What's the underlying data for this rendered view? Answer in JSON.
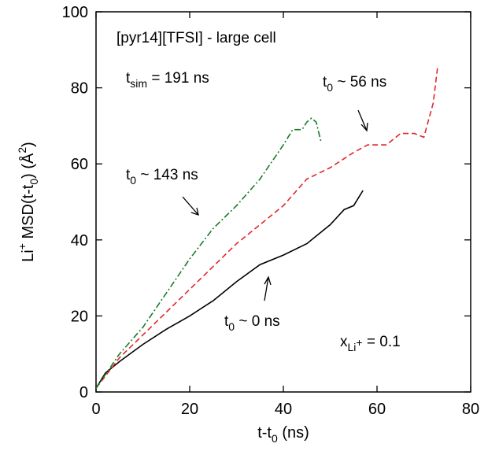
{
  "chart_data": {
    "type": "line",
    "x_label": [
      {
        "text": "t-t"
      },
      {
        "sub": "0"
      },
      {
        "text": " (ns)"
      }
    ],
    "y_label": [
      {
        "text": "Li"
      },
      {
        "sup": "+"
      },
      {
        "text": " MSD(t-t"
      },
      {
        "sub": "0"
      },
      {
        "text": ") (Å"
      },
      {
        "sup": "2"
      },
      {
        "text": ")"
      }
    ],
    "xlim": [
      0,
      80
    ],
    "xticks": [
      0,
      20,
      40,
      60,
      80
    ],
    "ylim": [
      0,
      100
    ],
    "yticks": [
      0,
      20,
      40,
      60,
      80,
      100
    ],
    "annotations": [
      [
        {
          "text": "[pyr14][TFSI] - large cell"
        }
      ],
      [
        {
          "text": "t"
        },
        {
          "sub": "sim"
        },
        {
          "text": " = 191 ns"
        }
      ],
      [
        {
          "text": "t"
        },
        {
          "sub": "0"
        },
        {
          "text": " ~ 56 ns"
        }
      ],
      [
        {
          "text": "t"
        },
        {
          "sub": "0"
        },
        {
          "text": " ~ 143 ns"
        }
      ],
      [
        {
          "text": "t"
        },
        {
          "sub": "0"
        },
        {
          "text": " ~ 0 ns"
        }
      ],
      [
        {
          "text": "x"
        },
        {
          "sub": "Li"
        },
        {
          "subsup": "+"
        },
        {
          "text": " = 0.1"
        }
      ]
    ],
    "series": [
      {
        "color": "#000000",
        "dash": "solid",
        "x": [
          0,
          2,
          5,
          10,
          15,
          20,
          25,
          30,
          35,
          40,
          45,
          50,
          53,
          55,
          56,
          57
        ],
        "values": [
          1,
          5,
          8,
          12.5,
          16.5,
          20,
          24,
          29,
          33.5,
          36,
          39,
          44,
          48,
          49,
          51,
          53
        ]
      },
      {
        "color": "#e0282a",
        "dash": "dashed",
        "x": [
          0,
          5,
          10,
          15,
          20,
          25,
          30,
          35,
          40,
          45,
          50,
          55,
          58,
          62,
          65,
          68,
          70,
          72,
          73
        ],
        "values": [
          1,
          9,
          15,
          21,
          27,
          33,
          39,
          44,
          49,
          56,
          59,
          63,
          65,
          65,
          68,
          68,
          67,
          76,
          86
        ]
      },
      {
        "color": "#1a7a2a",
        "dash": "dashdot",
        "x": [
          0,
          5,
          10,
          15,
          20,
          25,
          30,
          35,
          40,
          42,
          44,
          45,
          46,
          47,
          48
        ],
        "values": [
          1,
          10,
          17,
          26,
          35,
          43,
          49,
          56,
          65,
          69,
          69,
          71,
          72,
          71,
          66
        ]
      }
    ]
  }
}
